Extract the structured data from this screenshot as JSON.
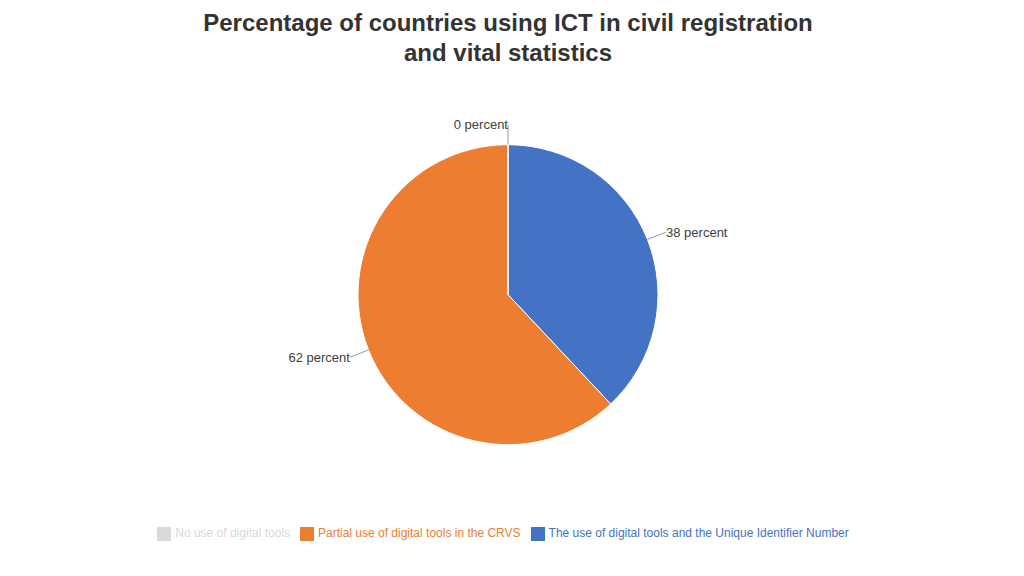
{
  "chart_data": {
    "type": "pie",
    "title": "Percentage of countries using ICT in civil registration\nand vital statistics",
    "categories": [
      "The use of digital tools and the Unique Identifier Number",
      "Partial use of digital tools in the CRVS",
      "No use of digital tools"
    ],
    "values": [
      38,
      62,
      0.0001
    ],
    "value_labels": [
      "38 percent",
      "62 percent",
      "0 percent"
    ],
    "colors": [
      "#4472c4",
      "#ed7d31",
      "#d9d9d9"
    ],
    "data_labels": true,
    "legend": "bottom"
  }
}
